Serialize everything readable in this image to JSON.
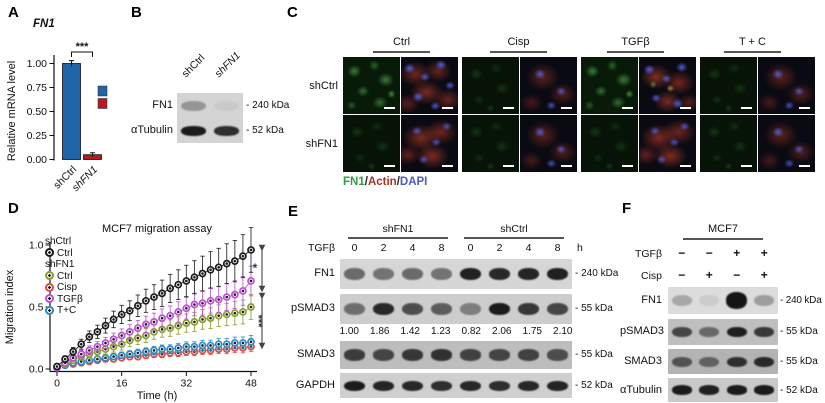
{
  "figure": {
    "panels": {
      "A": "A",
      "B": "B",
      "C": "C",
      "D": "D",
      "E": "E",
      "F": "F"
    }
  },
  "chart_data": [
    {
      "panel": "A",
      "type": "bar",
      "title": "FN1",
      "ylabel": "Relative mRNA level",
      "categories": [
        "shCtrl",
        "shFN1"
      ],
      "values": [
        1.0,
        0.05
      ],
      "errors": [
        0.03,
        0.02
      ],
      "bar_colors": [
        "#1f65a8",
        "#b01c24"
      ],
      "yticks": [
        0,
        0.25,
        0.5,
        0.75,
        1.0
      ],
      "ylim": [
        0,
        1.1
      ],
      "sig": "***",
      "legend_swatches": [
        "#1f65a8",
        "#b01c24"
      ]
    },
    {
      "panel": "D",
      "type": "line",
      "title": "MCF7 migration assay",
      "xlabel": "Time (h)",
      "ylabel": "Migration index",
      "x": [
        0,
        2,
        4,
        6,
        8,
        10,
        12,
        14,
        16,
        18,
        20,
        22,
        24,
        26,
        28,
        30,
        32,
        34,
        36,
        38,
        40,
        42,
        44,
        46,
        48
      ],
      "xticks": [
        0,
        16,
        32,
        48
      ],
      "yticks": [
        0.0,
        0.5,
        1.0
      ],
      "ylim": [
        0,
        1.05
      ],
      "series": [
        {
          "name": "Ctrl",
          "group": "shCtrl",
          "color": "#1a1a1a",
          "values": [
            0.02,
            0.08,
            0.14,
            0.2,
            0.26,
            0.3,
            0.35,
            0.4,
            0.44,
            0.47,
            0.51,
            0.55,
            0.58,
            0.61,
            0.65,
            0.68,
            0.71,
            0.74,
            0.77,
            0.8,
            0.82,
            0.85,
            0.87,
            0.91,
            0.96
          ],
          "err_range": [
            0.02,
            0.18
          ]
        },
        {
          "name": "Ctrl",
          "group": "shFN1",
          "color": "#8a9c2f",
          "values": [
            0.01,
            0.04,
            0.07,
            0.1,
            0.12,
            0.14,
            0.16,
            0.18,
            0.2,
            0.23,
            0.25,
            0.27,
            0.3,
            0.32,
            0.33,
            0.35,
            0.37,
            0.38,
            0.4,
            0.41,
            0.43,
            0.44,
            0.45,
            0.46,
            0.5
          ],
          "err_range": [
            0.02,
            0.1
          ]
        },
        {
          "name": "Cisp",
          "group": "shFN1",
          "color": "#d4504b",
          "values": [
            0.01,
            0.03,
            0.04,
            0.05,
            0.06,
            0.07,
            0.08,
            0.08,
            0.09,
            0.1,
            0.1,
            0.11,
            0.12,
            0.12,
            0.13,
            0.13,
            0.14,
            0.14,
            0.15,
            0.15,
            0.16,
            0.16,
            0.17,
            0.17,
            0.18
          ],
          "err_range": [
            0.015,
            0.04
          ]
        },
        {
          "name": "TGFβ",
          "group": "shFN1",
          "color": "#bb4fd6",
          "values": [
            0.01,
            0.05,
            0.09,
            0.12,
            0.15,
            0.18,
            0.21,
            0.24,
            0.27,
            0.3,
            0.33,
            0.36,
            0.38,
            0.41,
            0.43,
            0.46,
            0.49,
            0.52,
            0.53,
            0.55,
            0.56,
            0.58,
            0.6,
            0.63,
            0.71
          ],
          "err_range": [
            0.02,
            0.12
          ]
        },
        {
          "name": "T+C",
          "group": "shFN1",
          "color": "#2e8bc0",
          "values": [
            0.01,
            0.03,
            0.05,
            0.06,
            0.07,
            0.08,
            0.09,
            0.1,
            0.11,
            0.12,
            0.13,
            0.14,
            0.15,
            0.16,
            0.16,
            0.17,
            0.18,
            0.18,
            0.19,
            0.19,
            0.2,
            0.2,
            0.21,
            0.21,
            0.22
          ],
          "err_range": [
            0.015,
            0.05
          ]
        }
      ],
      "sig_labels": [
        "*",
        "***"
      ],
      "legend_position": "upper-left",
      "grid": false
    }
  ],
  "panelB": {
    "lanes": [
      "shCtrl",
      "shFN1"
    ],
    "rows": [
      {
        "name": "FN1",
        "marker": "- 240 kDa",
        "bands": [
          0.32,
          0.05
        ]
      },
      {
        "name": "αTubulin",
        "marker": "- 52 kDa",
        "bands": [
          0.95,
          0.85
        ]
      }
    ]
  },
  "panelC": {
    "columns": [
      "Ctrl",
      "Cisp",
      "TGFβ",
      "T + C"
    ],
    "row_labels": [
      "shCtrl",
      "shFN1"
    ],
    "legend": [
      {
        "text": "FN1",
        "color": "#2e9e3f"
      },
      {
        "text": "Actin",
        "color": "#a93226"
      },
      {
        "text": "DAPI",
        "color": "#4a5bc9"
      }
    ],
    "rows": [
      {
        "label": "shCtrl",
        "cells": [
          {
            "t": "g",
            "v": "hi"
          },
          {
            "t": "m",
            "v": "a"
          },
          {
            "t": "g",
            "v": "lo"
          },
          {
            "t": "m",
            "v": "b"
          },
          {
            "t": "g",
            "v": "hi"
          },
          {
            "t": "m",
            "v": "c"
          },
          {
            "t": "g",
            "v": "lo"
          },
          {
            "t": "m",
            "v": "b"
          }
        ]
      },
      {
        "label": "shFN1",
        "cells": [
          {
            "t": "g",
            "v": "lo"
          },
          {
            "t": "m",
            "v": "d"
          },
          {
            "t": "g",
            "v": "lo"
          },
          {
            "t": "m",
            "v": "b"
          },
          {
            "t": "g",
            "v": "lo"
          },
          {
            "t": "m",
            "v": "d"
          },
          {
            "t": "g",
            "v": "lo"
          },
          {
            "t": "m",
            "v": "b"
          }
        ]
      }
    ]
  },
  "panelE": {
    "groups": [
      "shFN1",
      "shCtrl"
    ],
    "stim_label": "TGFβ",
    "time_points": [
      "0",
      "2",
      "4",
      "8",
      "0",
      "2",
      "4",
      "8"
    ],
    "time_unit": "h",
    "quant": [
      "1.00",
      "1.86",
      "1.42",
      "1.23",
      "0.82",
      "2.06",
      "1.75",
      "2.10"
    ],
    "rows": [
      {
        "name": "FN1",
        "marker": "- 240 kDa",
        "bands": [
          0.55,
          0.5,
          0.55,
          0.5,
          0.92,
          0.88,
          0.9,
          0.92
        ]
      },
      {
        "name": "pSMAD3",
        "marker": "- 55 kDa",
        "bands": [
          0.5,
          0.88,
          0.68,
          0.6,
          0.42,
          0.95,
          0.8,
          0.72
        ]
      },
      {
        "name": "SMAD3",
        "marker": "- 55 kDa",
        "bands": [
          0.75,
          0.7,
          0.78,
          0.82,
          0.72,
          0.7,
          0.72,
          0.65
        ]
      },
      {
        "name": "GAPDH",
        "marker": "- 52 kDa",
        "bands": [
          0.95,
          0.9,
          0.88,
          0.85,
          0.88,
          0.85,
          0.88,
          0.9
        ]
      }
    ]
  },
  "panelF": {
    "header": "MCF7",
    "treatments": [
      {
        "name": "TGFβ",
        "signs": [
          "−",
          "−",
          "+",
          "+"
        ]
      },
      {
        "name": "Cisp",
        "signs": [
          "−",
          "+",
          "−",
          "+"
        ]
      }
    ],
    "rows": [
      {
        "name": "FN1",
        "marker": "- 240 kDa",
        "bands": [
          0.25,
          0.08,
          0.98,
          0.3
        ]
      },
      {
        "name": "pSMAD3",
        "marker": "- 55 kDa",
        "bands": [
          0.7,
          0.5,
          0.92,
          0.78
        ]
      },
      {
        "name": "SMAD3",
        "marker": "- 55 kDa",
        "bands": [
          0.6,
          0.5,
          0.82,
          0.85
        ]
      },
      {
        "name": "αTubulin",
        "marker": "- 52 kDa",
        "bands": [
          0.95,
          0.92,
          0.95,
          0.95
        ]
      }
    ]
  }
}
